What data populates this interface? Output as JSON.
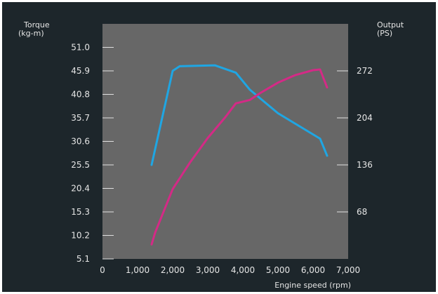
{
  "chart_data": {
    "type": "line",
    "left_axis_title": [
      "Torque",
      "(kg-m)"
    ],
    "right_axis_title": [
      "Output",
      "(PS)"
    ],
    "xlabel": "Engine speed (rpm)",
    "xlim": [
      0,
      7000
    ],
    "x_ticks": [
      0,
      1000,
      2000,
      3000,
      4000,
      5000,
      6000,
      7000
    ],
    "x_tick_labels": [
      "0",
      "1,000",
      "2,000",
      "3,000",
      "4,000",
      "5,000",
      "6,000",
      "7,000"
    ],
    "y_left_lim": [
      5.1,
      56.1
    ],
    "y_left_ticks": [
      5.1,
      10.2,
      15.3,
      20.4,
      25.5,
      30.6,
      35.7,
      40.8,
      45.9,
      51.0
    ],
    "y_left_tick_labels": [
      "5.1",
      "10.2",
      "15.3",
      "20.4",
      "25.5",
      "30.6",
      "35.7",
      "40.8",
      "45.9",
      "51.0"
    ],
    "y_right_lim": [
      0,
      340
    ],
    "y_right_ticks": [
      68,
      136,
      204,
      272
    ],
    "y_right_tick_labels": [
      "68",
      "136",
      "204",
      "272"
    ],
    "grid": false,
    "colors": {
      "background": "#1d262b",
      "plot_area": "#676767",
      "text": "#e6e6e6",
      "torque": "#1fa6e3",
      "output": "#d42a86"
    },
    "series": [
      {
        "axis": "left",
        "color": "#1fa6e3",
        "x": [
          1400,
          2000,
          2200,
          3200,
          3800,
          4200,
          5000,
          6200,
          6400
        ],
        "y": [
          25.5,
          45.9,
          46.9,
          47.1,
          45.5,
          41.8,
          36.7,
          31.2,
          27.5
        ]
      },
      {
        "axis": "right",
        "color": "#d42a86",
        "x": [
          1400,
          1500,
          2000,
          2500,
          3000,
          3500,
          3800,
          4200,
          4500,
          5000,
          5500,
          6000,
          6200,
          6400
        ],
        "y": [
          21,
          38,
          101,
          140,
          175,
          205,
          225,
          230,
          240,
          255,
          266,
          273,
          274,
          248
        ]
      }
    ]
  }
}
